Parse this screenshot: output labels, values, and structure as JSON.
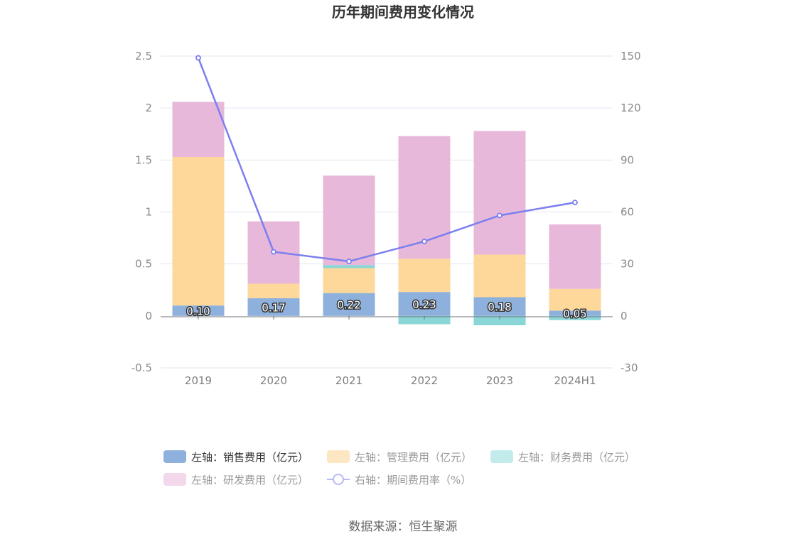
{
  "chart_data": {
    "type": "bar",
    "title": "历年期间费用变化情况",
    "categories": [
      "2019",
      "2020",
      "2021",
      "2022",
      "2023",
      "2024H1"
    ],
    "y_left": {
      "min": -0.5,
      "max": 2.5,
      "ticks": [
        "2.5",
        "2",
        "1.5",
        "1",
        "0.5",
        "0",
        "-0.5"
      ],
      "tick_values": [
        2.5,
        2,
        1.5,
        1,
        0.5,
        0,
        -0.5
      ]
    },
    "y_right": {
      "min": -30,
      "max": 150,
      "ticks": [
        "150",
        "120",
        "90",
        "60",
        "30",
        "0",
        "-30"
      ],
      "tick_values": [
        150,
        120,
        90,
        60,
        30,
        0,
        -30
      ]
    },
    "grid": true,
    "series": [
      {
        "name": "左轴：销售费用（亿元）",
        "type": "bar",
        "axis": "left",
        "color": "#8eb0dc",
        "legend_color": "#8eb0dc",
        "values": [
          0.1,
          0.17,
          0.22,
          0.23,
          0.18,
          0.05
        ],
        "labels": [
          "0.10",
          "0.17",
          "0.22",
          "0.23",
          "0.18",
          "0.05"
        ]
      },
      {
        "name": "左轴：管理费用（亿元）",
        "type": "bar",
        "axis": "left",
        "color": "#fdd89a",
        "legend_color": "#fde7c2",
        "values": [
          1.43,
          0.14,
          0.24,
          0.32,
          0.41,
          0.21
        ]
      },
      {
        "name": "左轴：财务费用（亿元）",
        "type": "bar",
        "axis": "left",
        "color": "#8ad6d7",
        "legend_color": "#c2ebeb",
        "values": [
          0.0,
          0.0,
          0.03,
          -0.08,
          -0.09,
          -0.04
        ]
      },
      {
        "name": "左轴：研发费用（亿元）",
        "type": "bar",
        "axis": "left",
        "color": "#e7b8d9",
        "legend_color": "#f3d7eb",
        "values": [
          0.53,
          0.6,
          0.86,
          1.18,
          1.19,
          0.62
        ]
      },
      {
        "name": "右轴：期间费用率（%）",
        "type": "line",
        "axis": "right",
        "color": "#7b7ff0",
        "legend_color": "#b8baf7",
        "values": [
          149,
          37,
          31.5,
          43,
          58,
          65.5
        ]
      }
    ],
    "legend_position": "bottom"
  },
  "source": "数据来源：恒生聚源"
}
